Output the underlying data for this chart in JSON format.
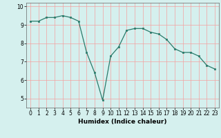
{
  "x": [
    0,
    1,
    2,
    3,
    4,
    5,
    6,
    7,
    8,
    9,
    10,
    11,
    12,
    13,
    14,
    15,
    16,
    17,
    18,
    19,
    20,
    21,
    22,
    23
  ],
  "y": [
    9.2,
    9.2,
    9.4,
    9.4,
    9.5,
    9.4,
    9.2,
    7.5,
    6.4,
    4.9,
    7.3,
    7.8,
    8.7,
    8.8,
    8.8,
    8.6,
    8.5,
    8.2,
    7.7,
    7.5,
    7.5,
    7.3,
    6.8,
    6.6
  ],
  "xlabel": "Humidex (Indice chaleur)",
  "ylim": [
    4.5,
    10.2
  ],
  "xlim": [
    -0.5,
    23.5
  ],
  "line_color": "#2a7a6a",
  "marker_color": "#2a7a6a",
  "bg_color": "#d5f0ee",
  "grid_color": "#f4a0a0",
  "yticks": [
    5,
    6,
    7,
    8,
    9,
    10
  ],
  "xticks": [
    0,
    1,
    2,
    3,
    4,
    5,
    6,
    7,
    8,
    9,
    10,
    11,
    12,
    13,
    14,
    15,
    16,
    17,
    18,
    19,
    20,
    21,
    22,
    23
  ],
  "tick_fontsize": 5.5,
  "xlabel_fontsize": 6.5,
  "spine_color": "#666666"
}
